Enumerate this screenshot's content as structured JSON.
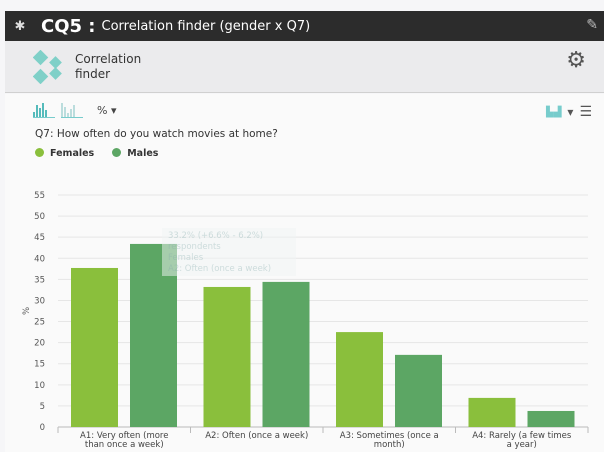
{
  "titlebar": {
    "code": "CQ5 :",
    "title": "Correlation finder (gender x Q7)",
    "icon": "puzzle-icon",
    "edit_icon": "pencil-icon"
  },
  "header": {
    "app_name_line1": "Correlation",
    "app_name_line2": "finder",
    "settings_icon": "gear-icon"
  },
  "toolbar": {
    "unit": "%",
    "unit_caret": "▾",
    "chart_type_caret": "▾",
    "menu_icon": "☰"
  },
  "question": "Q7: How often do you watch movies at home?",
  "tooltip": {
    "line1": "33.2% (+6.6% - 6.2%)",
    "line2": "respondents",
    "line3": "Females",
    "line4": "A2: Often (once a week)"
  },
  "chart_data": {
    "type": "bar",
    "ylabel": "%",
    "ylim": [
      0,
      55
    ],
    "yticks": [
      0,
      5,
      10,
      15,
      20,
      25,
      30,
      35,
      40,
      45,
      50,
      55
    ],
    "categories": [
      "A1: Very often (more|than once a week)",
      "A2: Often (once a week)",
      "A3: Sometimes (once a|month)",
      "A4: Rarely (a few times|a year)"
    ],
    "series": [
      {
        "name": "Females",
        "color": "#8abf3c",
        "values": [
          37.7,
          33.2,
          22.5,
          6.9
        ]
      },
      {
        "name": "Males",
        "color": "#5ca664",
        "values": [
          43.4,
          34.4,
          17.1,
          3.8
        ]
      }
    ],
    "legend": "top-left",
    "grid": true
  }
}
